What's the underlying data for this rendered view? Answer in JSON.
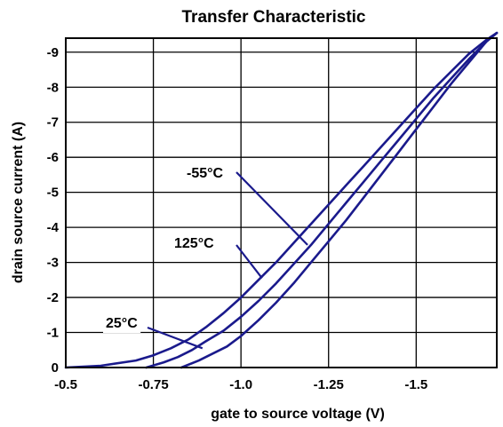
{
  "chart_data": {
    "type": "line",
    "title": "Transfer Characteristic",
    "xlabel": "gate to source voltage (V)",
    "ylabel": "drain source current (A)",
    "xlim": [
      -0.5,
      -1.73
    ],
    "ylim": [
      0,
      -9.4
    ],
    "x_ticks": [
      {
        "value": -0.5,
        "label": "-0.5"
      },
      {
        "value": -0.75,
        "label": "-0.75"
      },
      {
        "value": -1.0,
        "label": "-1.0"
      },
      {
        "value": -1.25,
        "label": "-1.25"
      },
      {
        "value": -1.5,
        "label": "-1.5"
      }
    ],
    "y_ticks": [
      {
        "value": 0,
        "label": "0"
      },
      {
        "value": -1,
        "label": "-1"
      },
      {
        "value": -2,
        "label": "-2"
      },
      {
        "value": -3,
        "label": "-3"
      },
      {
        "value": -4,
        "label": "-4"
      },
      {
        "value": -5,
        "label": "-5"
      },
      {
        "value": -6,
        "label": "-6"
      },
      {
        "value": -7,
        "label": "-7"
      },
      {
        "value": -8,
        "label": "-8"
      },
      {
        "value": -9,
        "label": "-9"
      }
    ],
    "grid": true,
    "series": [
      {
        "name": "25°C",
        "color": "#1a1a8c",
        "x": [
          -0.5,
          -0.6,
          -0.7,
          -0.75,
          -0.8,
          -0.85,
          -0.9,
          -0.95,
          -1.0,
          -1.05,
          -1.1,
          -1.15,
          -1.2,
          -1.25,
          -1.3,
          -1.35,
          -1.4,
          -1.45,
          -1.5,
          -1.55,
          -1.6,
          -1.65,
          -1.7,
          -1.73
        ],
        "y": [
          0,
          -0.05,
          -0.2,
          -0.35,
          -0.55,
          -0.8,
          -1.15,
          -1.55,
          -2.0,
          -2.5,
          -3.0,
          -3.55,
          -4.1,
          -4.65,
          -5.2,
          -5.75,
          -6.3,
          -6.85,
          -7.4,
          -7.95,
          -8.45,
          -8.95,
          -9.35,
          -9.55
        ]
      },
      {
        "name": "125°C",
        "color": "#1a1a8c",
        "x": [
          -0.73,
          -0.78,
          -0.82,
          -0.86,
          -0.9,
          -0.95,
          -1.0,
          -1.05,
          -1.1,
          -1.15,
          -1.2,
          -1.25,
          -1.3,
          -1.35,
          -1.4,
          -1.45,
          -1.5,
          -1.55,
          -1.6,
          -1.65,
          -1.7,
          -1.73
        ],
        "y": [
          0,
          -0.15,
          -0.3,
          -0.5,
          -0.75,
          -1.05,
          -1.45,
          -1.9,
          -2.4,
          -2.95,
          -3.5,
          -4.1,
          -4.7,
          -5.3,
          -5.9,
          -6.5,
          -7.1,
          -7.7,
          -8.25,
          -8.8,
          -9.3,
          -9.55
        ]
      },
      {
        "name": "-55°C",
        "color": "#1a1a8c",
        "x": [
          -0.83,
          -0.88,
          -0.92,
          -0.96,
          -1.0,
          -1.05,
          -1.1,
          -1.15,
          -1.2,
          -1.25,
          -1.3,
          -1.35,
          -1.4,
          -1.45,
          -1.5,
          -1.55,
          -1.6,
          -1.65,
          -1.7,
          -1.73
        ],
        "y": [
          0,
          -0.2,
          -0.4,
          -0.6,
          -0.9,
          -1.35,
          -1.85,
          -2.4,
          -3.0,
          -3.6,
          -4.2,
          -4.85,
          -5.5,
          -6.15,
          -6.8,
          -7.45,
          -8.1,
          -8.7,
          -9.3,
          -9.55
        ]
      }
    ],
    "annotations": [
      {
        "text": "-55°C",
        "series": "-55°C",
        "target_x": -1.19,
        "target_y": -3.5
      },
      {
        "text": "125°C",
        "series": "125°C",
        "target_x": -1.06,
        "target_y": -2.55
      },
      {
        "text": "25°C",
        "series": "25°C",
        "target_x": -0.89,
        "target_y": -0.55
      }
    ]
  }
}
